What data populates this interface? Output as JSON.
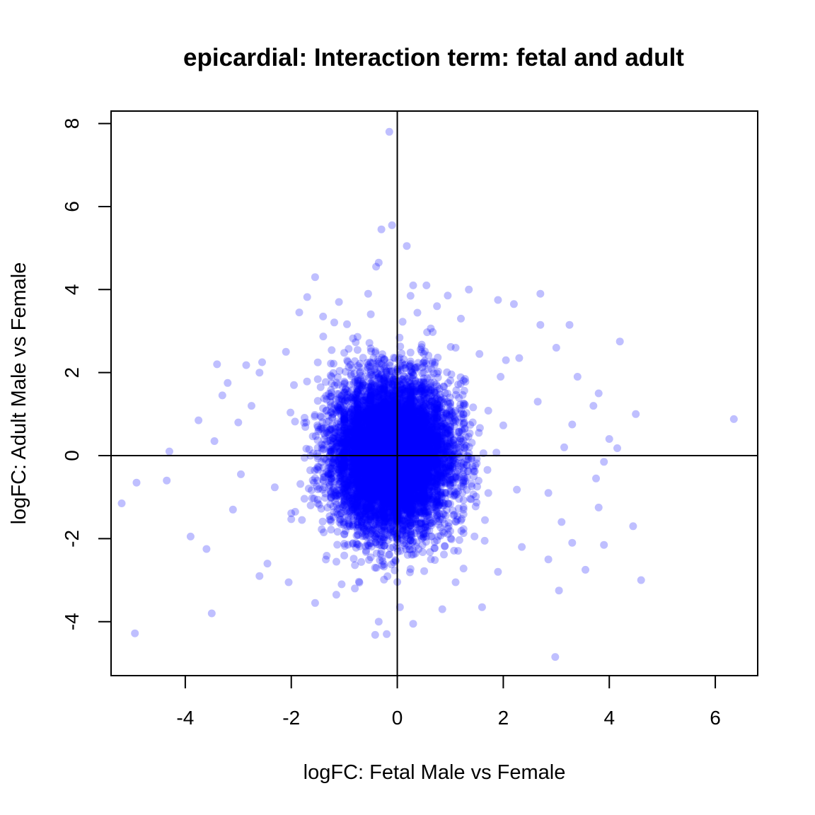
{
  "chart_data": {
    "type": "scatter",
    "title": "epicardial: Interaction term: fetal and adult",
    "xlabel": "logFC: Fetal Male vs Female",
    "ylabel": "logFC: Adult Male vs Female",
    "xlim": [
      -5.4,
      6.8
    ],
    "ylim": [
      -5.3,
      8.3
    ],
    "xticks": [
      -4,
      -2,
      0,
      2,
      4,
      6
    ],
    "yticks": [
      -4,
      -2,
      0,
      2,
      4,
      6,
      8
    ],
    "xtick_labels": [
      "-4",
      "-2",
      "0",
      "2",
      "4",
      "6"
    ],
    "ytick_labels": [
      "-4",
      "-2",
      "0",
      "2",
      "4",
      "6",
      "8"
    ],
    "reference_lines": {
      "x": 0,
      "y": 0
    },
    "point_color": "#0000ff",
    "point_alpha": 0.25,
    "grid": false,
    "legend": "none",
    "dense_core": {
      "x_center": -0.1,
      "y_center": 0.0,
      "x_spread": 0.55,
      "y_spread": 0.9,
      "approx_count": 9000
    },
    "points": [
      [
        -0.15,
        7.8
      ],
      [
        -0.1,
        5.55
      ],
      [
        -0.3,
        5.45
      ],
      [
        0.18,
        5.05
      ],
      [
        -0.35,
        4.65
      ],
      [
        -0.4,
        4.55
      ],
      [
        -1.55,
        4.3
      ],
      [
        -1.7,
        3.82
      ],
      [
        0.3,
        4.1
      ],
      [
        0.55,
        4.1
      ],
      [
        1.35,
        4.0
      ],
      [
        2.7,
        3.9
      ],
      [
        1.9,
        3.75
      ],
      [
        2.2,
        3.65
      ],
      [
        -1.85,
        3.45
      ],
      [
        2.7,
        3.15
      ],
      [
        3.25,
        3.15
      ],
      [
        4.2,
        2.75
      ],
      [
        3.0,
        2.6
      ],
      [
        -3.4,
        2.2
      ],
      [
        -2.85,
        2.18
      ],
      [
        -2.55,
        2.25
      ],
      [
        3.4,
        1.9
      ],
      [
        3.8,
        1.5
      ],
      [
        3.7,
        1.2
      ],
      [
        4.5,
        1.0
      ],
      [
        6.35,
        0.88
      ],
      [
        3.3,
        0.75
      ],
      [
        4.0,
        0.4
      ],
      [
        4.15,
        0.18
      ],
      [
        3.9,
        -0.15
      ],
      [
        3.75,
        -0.55
      ],
      [
        3.8,
        -1.25
      ],
      [
        4.45,
        -1.7
      ],
      [
        3.9,
        -2.15
      ],
      [
        3.55,
        -2.75
      ],
      [
        4.6,
        -3.0
      ],
      [
        3.05,
        -3.25
      ],
      [
        2.98,
        -4.85
      ],
      [
        1.6,
        -3.65
      ],
      [
        0.3,
        -4.05
      ],
      [
        -0.2,
        -4.3
      ],
      [
        -0.35,
        -4.0
      ],
      [
        -1.15,
        -3.35
      ],
      [
        -1.55,
        -3.55
      ],
      [
        -3.5,
        -3.8
      ],
      [
        -4.95,
        -4.28
      ],
      [
        -5.2,
        -1.15
      ],
      [
        -4.92,
        -0.65
      ],
      [
        -3.9,
        -1.95
      ],
      [
        -3.6,
        -2.25
      ],
      [
        -4.35,
        -0.6
      ],
      [
        -4.3,
        0.1
      ],
      [
        -3.75,
        0.85
      ],
      [
        -3.2,
        1.75
      ],
      [
        -3.0,
        0.8
      ],
      [
        -2.6,
        2.0
      ],
      [
        -2.1,
        2.5
      ],
      [
        2.3,
        2.35
      ],
      [
        2.05,
        2.3
      ],
      [
        1.55,
        2.45
      ],
      [
        1.1,
        2.6
      ],
      [
        -1.4,
        3.35
      ],
      [
        -1.1,
        3.7
      ],
      [
        -0.55,
        3.9
      ],
      [
        0.25,
        3.85
      ],
      [
        0.75,
        3.6
      ],
      [
        1.2,
        3.3
      ],
      [
        2.85,
        -2.5
      ],
      [
        2.35,
        -2.2
      ],
      [
        -2.45,
        -2.6
      ],
      [
        -2.6,
        -2.9
      ],
      [
        -2.05,
        -3.05
      ],
      [
        -1.05,
        -3.1
      ],
      [
        -0.8,
        -3.2
      ],
      [
        1.1,
        -3.05
      ],
      [
        1.9,
        -2.8
      ],
      [
        3.3,
        -2.1
      ],
      [
        3.1,
        -1.6
      ],
      [
        2.85,
        -0.9
      ],
      [
        3.15,
        0.2
      ],
      [
        2.65,
        1.3
      ],
      [
        1.95,
        1.9
      ],
      [
        -3.1,
        -1.3
      ],
      [
        -2.95,
        -0.45
      ],
      [
        -3.45,
        0.35
      ],
      [
        -3.3,
        1.45
      ],
      [
        -2.75,
        1.2
      ],
      [
        -1.95,
        1.7
      ],
      [
        0.85,
        -3.7
      ],
      [
        0.05,
        -3.65
      ]
    ]
  }
}
